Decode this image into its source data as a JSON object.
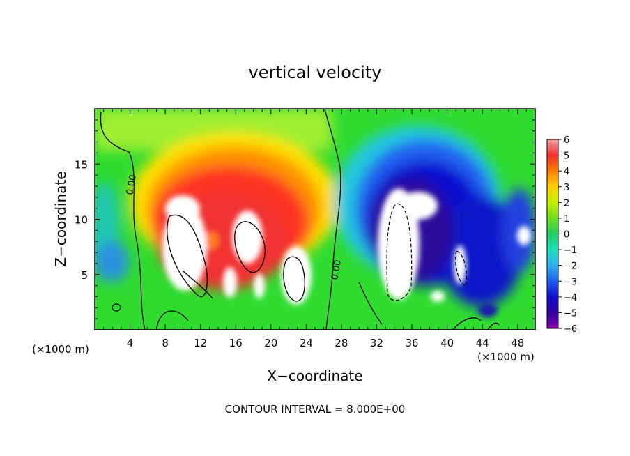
{
  "chart_data": {
    "type": "heatmap",
    "title": "vertical velocity",
    "xlabel": "X−coordinate",
    "ylabel": "Z−coordinate",
    "x_unit_left": "(×1000 m)",
    "x_unit_right": "(×1000 m)",
    "footer": "CONTOUR INTERVAL = 8.000E+00",
    "xlim": [
      0,
      50
    ],
    "ylim": [
      0,
      20
    ],
    "x_ticks": [
      "4",
      "8",
      "12",
      "16",
      "20",
      "24",
      "28",
      "32",
      "36",
      "40",
      "44",
      "48"
    ],
    "x_tick_values": [
      4,
      8,
      12,
      16,
      20,
      24,
      28,
      32,
      36,
      40,
      44,
      48
    ],
    "y_ticks": [
      "5",
      "10",
      "15"
    ],
    "y_tick_values": [
      5,
      10,
      15
    ],
    "colorbar": {
      "min": -6,
      "max": 6,
      "labels": [
        "6",
        "5",
        "4",
        "3",
        "2",
        "1",
        "0",
        "−1",
        "−2",
        "−3",
        "−4",
        "−5",
        "−6"
      ],
      "values": [
        6,
        5,
        4,
        3,
        2,
        1,
        0,
        -1,
        -2,
        -3,
        -4,
        -5,
        -6
      ]
    },
    "contour_labels": [
      "0.00",
      "0.00"
    ],
    "features": [
      {
        "sign": "positive",
        "x": 17,
        "z": 9,
        "peak": "above 6"
      },
      {
        "sign": "negative",
        "x": 34,
        "z": 7,
        "peak": "below -6"
      }
    ]
  }
}
